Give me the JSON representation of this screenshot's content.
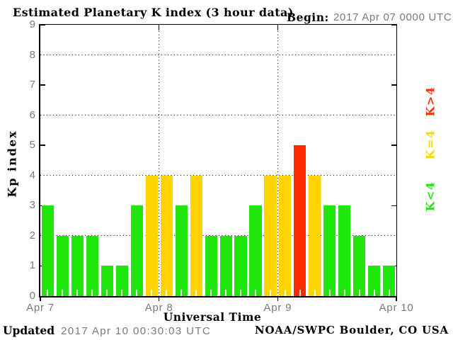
{
  "header": {
    "title": "Estimated Planetary K index (3 hour data)",
    "begin_label": "Begin:",
    "begin_value": "2017 Apr 07 0000 UTC"
  },
  "chart_data": {
    "type": "bar",
    "title": "Estimated Planetary K index (3 hour data)",
    "begin": "2017 Apr 07 0000 UTC",
    "xlabel": "Universal Time",
    "ylabel": "Kp index",
    "ylim": [
      0,
      9
    ],
    "yticks": [
      0,
      1,
      2,
      3,
      4,
      5,
      6,
      7,
      8,
      9
    ],
    "xtick_labels": [
      "Apr 7",
      "Apr 8",
      "Apr 9",
      "Apr 10"
    ],
    "interval_hours": 3,
    "values": [
      3,
      2,
      2,
      2,
      1,
      1,
      3,
      4,
      4,
      3,
      4,
      2,
      2,
      2,
      3,
      4,
      4,
      5,
      4,
      3,
      3,
      2,
      1,
      1
    ],
    "days": [
      {
        "date": "Apr 7",
        "values": [
          3,
          2,
          2,
          2,
          1,
          1,
          3,
          4
        ]
      },
      {
        "date": "Apr 8",
        "values": [
          4,
          3,
          4,
          2,
          2,
          2,
          3,
          4
        ]
      },
      {
        "date": "Apr 9",
        "values": [
          4,
          5,
          4,
          3,
          3,
          2,
          1,
          1
        ]
      }
    ],
    "color_rule": {
      "k_lt_4": "#1fe70c",
      "k_eq_4": "#ffd400",
      "k_gt_4": "#ff2a00"
    },
    "grid": "dotted horizontal lines at even Kp values, dotted vertical lines at day boundaries",
    "legend_position": "right, rotated 90deg"
  },
  "legend": {
    "items": [
      {
        "label": "K>4",
        "color": "#ff2a00"
      },
      {
        "label": "K=4",
        "color": "#ffd400"
      },
      {
        "label": "K<4",
        "color": "#1fe70c"
      }
    ]
  },
  "footer": {
    "updated_label": "Updated",
    "updated_value": "2017 Apr 10 00:30:03 UTC",
    "source": "NOAA/SWPC Boulder, CO USA"
  },
  "colors": {
    "green": "#1fe70c",
    "yellow": "#ffd400",
    "red": "#ff2a00",
    "axis": "#000000",
    "tick_text": "#7a7a7a",
    "background": "#ffffff"
  }
}
